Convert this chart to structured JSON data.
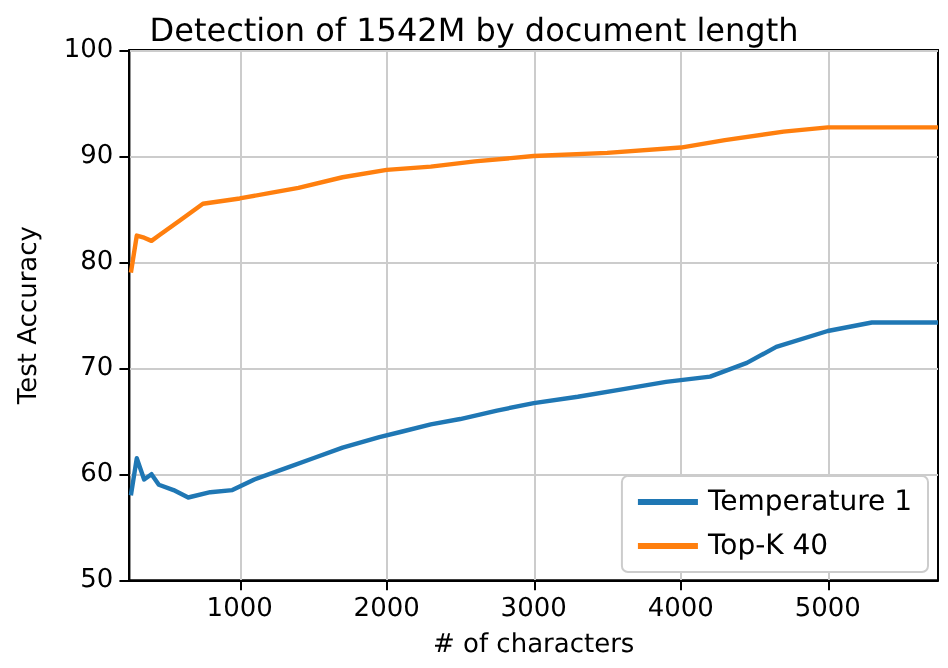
{
  "chart_data": {
    "type": "line",
    "title": "Detection of 1542M by document length",
    "xlabel": "# of characters",
    "ylabel": "Test Accuracy",
    "xlim": [
      250,
      5750
    ],
    "xticks": [
      1000,
      2000,
      3000,
      4000,
      5000
    ],
    "ylim": [
      50,
      100
    ],
    "yticks": [
      50,
      60,
      70,
      80,
      90,
      100
    ],
    "grid": true,
    "legend": "bottom right",
    "marker": "none",
    "line_style": "solid",
    "series": [
      {
        "name": "Temperature 1",
        "color": "#1f77b4",
        "x": [
          260,
          300,
          350,
          400,
          450,
          550,
          650,
          800,
          950,
          1100,
          1300,
          1500,
          1700,
          1950,
          2100,
          2300,
          2500,
          2750,
          3000,
          3300,
          3600,
          3900,
          4200,
          4450,
          4650,
          5000,
          5300,
          5750
        ],
        "values": [
          58,
          61.5,
          59.5,
          60,
          59,
          58.5,
          57.8,
          58.3,
          58.5,
          59.5,
          60.5,
          61.5,
          62.5,
          63.5,
          64,
          64.7,
          65.2,
          66,
          66.7,
          67.3,
          68,
          68.7,
          69.2,
          70.5,
          72,
          73.5,
          74.3,
          74.3
        ]
      },
      {
        "name": "Top-K 40",
        "color": "#ff7f0e",
        "x": [
          260,
          300,
          350,
          400,
          450,
          500,
          600,
          750,
          1000,
          1200,
          1400,
          1700,
          2000,
          2300,
          2600,
          3000,
          3500,
          4000,
          4300,
          4700,
          5000,
          5750
        ],
        "values": [
          79,
          82.5,
          82.3,
          82,
          82.5,
          83,
          84,
          85.5,
          86,
          86.5,
          87,
          88,
          88.7,
          89,
          89.5,
          90,
          90.3,
          90.8,
          91.5,
          92.3,
          92.7,
          92.7
        ]
      }
    ]
  }
}
